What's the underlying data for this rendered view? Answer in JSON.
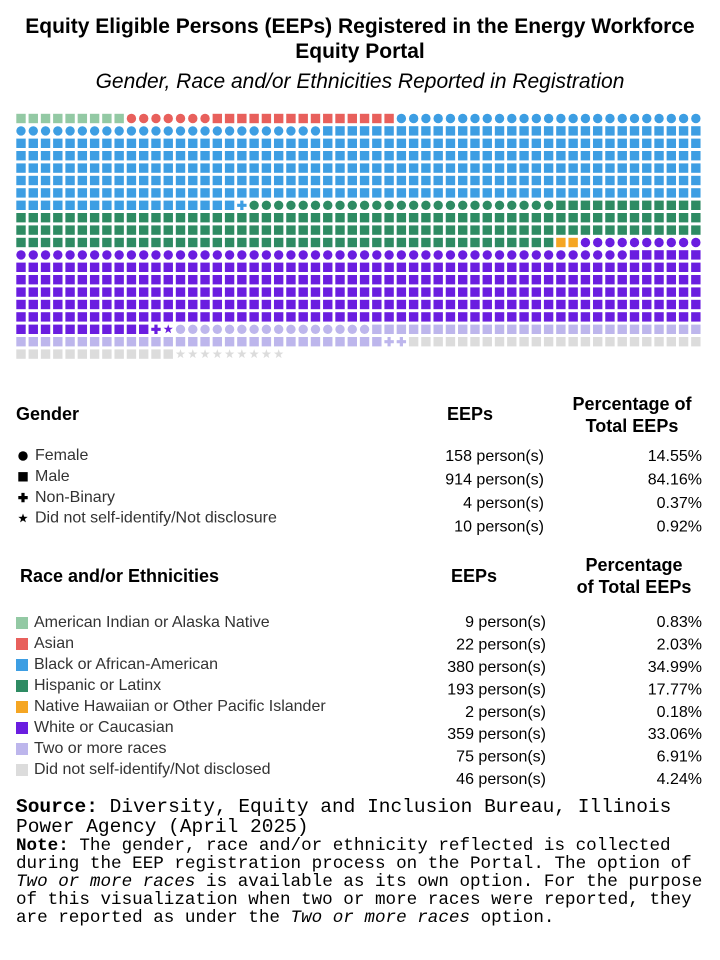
{
  "chart_data": {
    "type": "waffle",
    "title": "Equity Eligible Persons (EEPs) Registered in the Energy Workforce Equity Portal",
    "subtitle": "Gender, Race and/or Ethnicities Reported in Registration",
    "genders": {
      "heading": "Gender",
      "count_heading": "EEPs",
      "percentage_heading": [
        "Percentage of",
        "Total EEPs"
      ],
      "shapes": [
        "circle",
        "square",
        "plus",
        "star"
      ],
      "categories": [
        "Female",
        "Male",
        "Non-Binary",
        "Did not self-identify/Not disclosure"
      ],
      "values": [
        158,
        914,
        4,
        10
      ],
      "value_labels": [
        "158 person(s)",
        "914 person(s)",
        "4 person(s)",
        "10 person(s)"
      ],
      "percentages": [
        14.55,
        84.16,
        0.37,
        0.92
      ],
      "percentage_labels": [
        "14.55%",
        "84.16%",
        "0.37%",
        "0.92%"
      ]
    },
    "races": {
      "heading": "Race and/or Ethnicities",
      "count_heading": "EEPs",
      "percentage_heading": [
        "Percentage",
        "of Total EEPs"
      ],
      "series": [
        {
          "name": "American Indian or Alaska Native",
          "color": "#93c9a4",
          "values": [
            0,
            9,
            0,
            0
          ]
        },
        {
          "name": "Asian",
          "color": "#e8605c",
          "values": [
            7,
            15,
            0,
            0
          ]
        },
        {
          "name": "Black or African-American",
          "color": "#3d9ee3",
          "values": [
            50,
            329,
            1,
            0
          ]
        },
        {
          "name": "Hispanic or Latinx",
          "color": "#2e8b63",
          "values": [
            25,
            168,
            0,
            0
          ]
        },
        {
          "name": "Native Hawaiian or Other Pacific Islander",
          "color": "#f5a623",
          "values": [
            0,
            2,
            0,
            0
          ]
        },
        {
          "name": "White or Caucasian",
          "color": "#6a1de0",
          "values": [
            60,
            297,
            1,
            1
          ]
        },
        {
          "name": "Two or more races",
          "color": "#bdb6ec",
          "values": [
            16,
            57,
            2,
            0
          ]
        },
        {
          "name": "Did not self-identify/Not disclosed",
          "color": "#dcdcdc",
          "values": [
            0,
            37,
            0,
            9
          ]
        }
      ],
      "values": [
        9,
        22,
        380,
        193,
        2,
        359,
        75,
        46
      ],
      "value_labels": [
        "9 person(s)",
        "22 person(s)",
        "380 person(s)",
        "193 person(s)",
        "2 person(s)",
        "359 person(s)",
        "75 person(s)",
        "46 person(s)"
      ],
      "percentages": [
        0.83,
        2.03,
        34.99,
        17.77,
        0.18,
        33.06,
        6.91,
        4.24
      ],
      "percentage_labels": [
        "0.83%",
        "2.03%",
        "34.99%",
        "17.77%",
        "0.18%",
        "33.06%",
        "6.91%",
        "4.24%"
      ]
    },
    "source": {
      "label": "Source:",
      "text": "Diversity, Equity and Inclusion Bureau, Illinois Power Agency (April 2025)"
    },
    "note": {
      "label": "Note:",
      "parts": [
        {
          "text": "The gender, race and/or ethnicity reflected is collected during the EEP registration process on the Portal. The option of ",
          "italic": false
        },
        {
          "text": "Two or more races",
          "italic": true
        },
        {
          "text": " is available as its own option. For the purpose of this visualization when two or more races were reported, they are reported as under the ",
          "italic": false
        },
        {
          "text": "Two or more races",
          "italic": true
        },
        {
          "text": " option.",
          "italic": false
        }
      ]
    }
  }
}
